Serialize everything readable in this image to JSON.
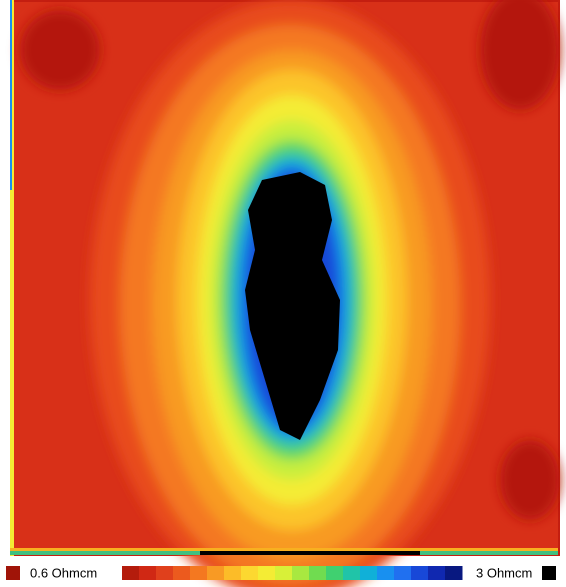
{
  "legend": {
    "min_label": "0.6 Ohmcm",
    "max_label": "3 Ohmcm",
    "min_color": "#a01408",
    "max_color": "#000000",
    "colors": [
      "#b41c0c",
      "#d02814",
      "#e0401c",
      "#ec5a1e",
      "#f47820",
      "#f89a24",
      "#fcbc28",
      "#fcd830",
      "#f4ec34",
      "#d8f038",
      "#a8e840",
      "#70dc50",
      "#40d070",
      "#20c4a8",
      "#10b0d8",
      "#1890f0",
      "#2070f0",
      "#1848d8",
      "#1028b0",
      "#081880"
    ]
  }
}
